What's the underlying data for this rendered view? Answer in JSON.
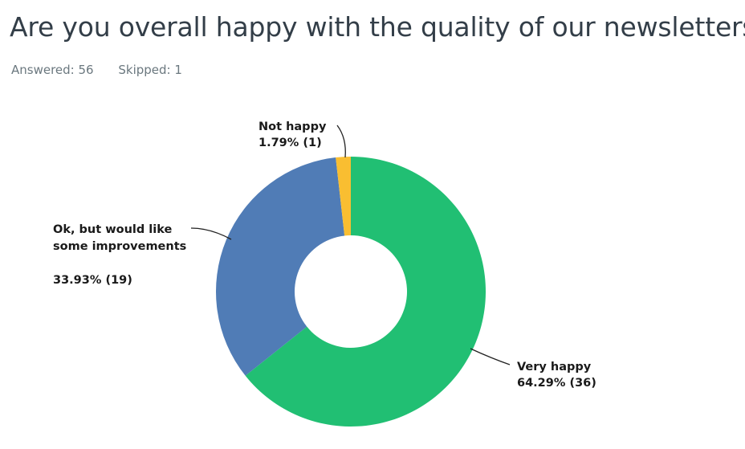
{
  "question": {
    "title": "Are you overall happy with the quality of our newsletters?",
    "answered_label": "Answered: 56",
    "skipped_label": "Skipped: 1"
  },
  "chart_data": {
    "type": "pie",
    "donut": true,
    "categories": [
      "Very happy",
      "Ok, but would like some improvements",
      "Not happy"
    ],
    "values": [
      64.29,
      33.93,
      1.79
    ],
    "counts": [
      36,
      19,
      1
    ],
    "colors": [
      "#21bf73",
      "#507cb6",
      "#f9be31"
    ],
    "data_labels": [
      [
        "Very happy",
        "64.29% (36)"
      ],
      [
        "Ok, but would like",
        "some improvements",
        "",
        "33.93% (19)"
      ],
      [
        "Not happy",
        "1.79% (1)"
      ]
    ]
  }
}
